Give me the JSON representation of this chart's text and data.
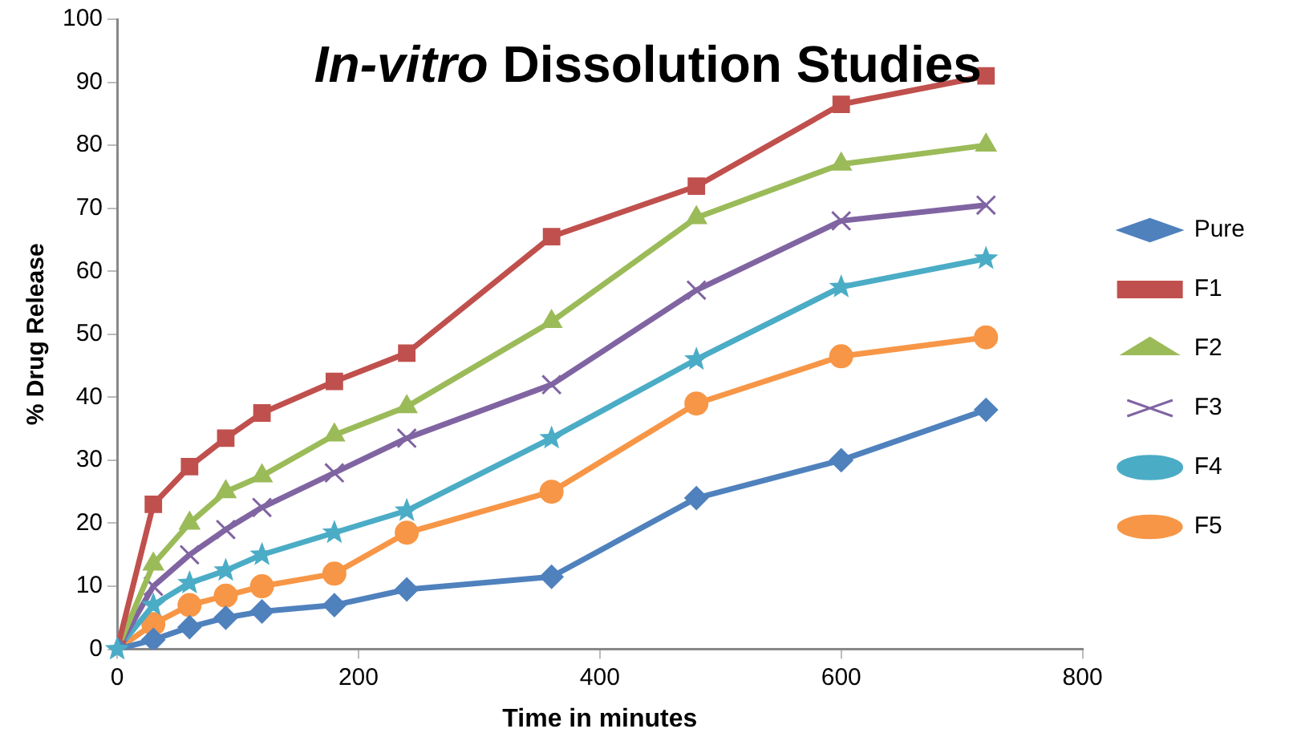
{
  "chart_data": {
    "type": "line",
    "title": "In-vitro Dissolution Studies",
    "xlabel": "Time in minutes",
    "ylabel": "% Drug Release",
    "x": [
      0,
      30,
      60,
      90,
      120,
      180,
      240,
      360,
      480,
      600,
      720
    ],
    "series": [
      {
        "name": "Pure",
        "color": "#4f81bd",
        "marker": "diamond",
        "values": [
          0,
          1.5,
          3.5,
          5,
          6,
          7,
          9.5,
          11.5,
          24,
          30,
          38
        ]
      },
      {
        "name": "F1",
        "color": "#c0504d",
        "marker": "square",
        "values": [
          0,
          23,
          29,
          33.5,
          37.5,
          42.5,
          47,
          65.5,
          73.5,
          86.5,
          91
        ]
      },
      {
        "name": "F2",
        "color": "#9bbb59",
        "marker": "triangle",
        "values": [
          0,
          13.5,
          20,
          25,
          27.5,
          34,
          38.5,
          52,
          68.5,
          77,
          80
        ]
      },
      {
        "name": "F3",
        "color": "#8064a2",
        "marker": "cross",
        "values": [
          0,
          10,
          15,
          19,
          22.5,
          28,
          33.5,
          42,
          57,
          68,
          70.5
        ]
      },
      {
        "name": "F4",
        "color": "#4bacc6",
        "marker": "star",
        "values": [
          0,
          7,
          10.5,
          12.5,
          15,
          18.5,
          22,
          33.5,
          46,
          57.5,
          62
        ]
      },
      {
        "name": "F5",
        "color": "#f79646",
        "marker": "circle",
        "values": [
          0,
          4,
          7,
          8.5,
          10,
          12,
          18.5,
          25,
          39,
          46.5,
          49.5
        ]
      }
    ],
    "xlim": [
      0,
      800
    ],
    "xticks": [
      0,
      200,
      400,
      600,
      800
    ],
    "ylim": [
      0,
      100
    ],
    "yticks": [
      0,
      10,
      20,
      30,
      40,
      50,
      60,
      70,
      80,
      90,
      100
    ],
    "grid": false,
    "legend": "right",
    "line_style": "solid"
  }
}
